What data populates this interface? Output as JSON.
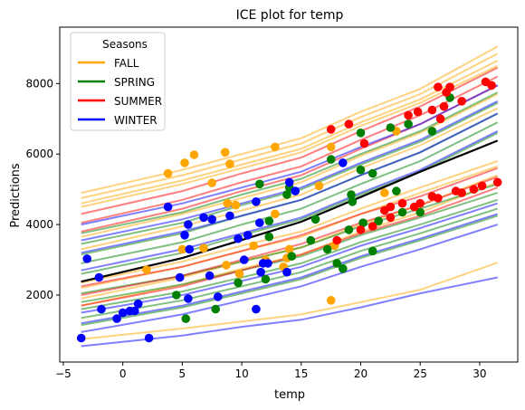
{
  "chart_data": {
    "type": "line",
    "title": "ICE plot for temp",
    "xlabel": "temp",
    "ylabel": "Predictions",
    "xlim": [
      -5.3,
      33.2
    ],
    "ylim": [
      100,
      9600
    ],
    "x_ticks": [
      -5,
      0,
      5,
      10,
      15,
      20,
      25,
      30
    ],
    "y_ticks": [
      2000,
      4000,
      6000,
      8000
    ],
    "grid": false,
    "legend": {
      "title": "Seasons",
      "placement": "top-left",
      "entries": [
        {
          "label": "FALL",
          "color": "#ffa500"
        },
        {
          "label": "SPRING",
          "color": "#008000"
        },
        {
          "label": "SUMMER",
          "color": "#ff0000"
        },
        {
          "label": "WINTER",
          "color": "#0000ff"
        }
      ]
    },
    "x_grid": [
      -3.5,
      5,
      10,
      15,
      20,
      25,
      31.5
    ],
    "average_curve": {
      "color": "#000000",
      "values": [
        2380,
        3050,
        3560,
        4080,
        4780,
        5500,
        6380
      ]
    },
    "ice_curves": [
      {
        "season": "FALL",
        "values": [
          4900,
          5550,
          6000,
          6450,
          7200,
          7850,
          9050
        ]
      },
      {
        "season": "FALL",
        "values": [
          4750,
          5400,
          5850,
          6300,
          7050,
          7700,
          8850
        ]
      },
      {
        "season": "FALL",
        "values": [
          4600,
          5250,
          5700,
          6150,
          6900,
          7550,
          8650
        ]
      },
      {
        "season": "FALL",
        "values": [
          4500,
          5150,
          5600,
          6050,
          6800,
          7450,
          8500
        ]
      },
      {
        "season": "FALL",
        "values": [
          3650,
          4300,
          4750,
          5200,
          5950,
          6600,
          7700
        ]
      },
      {
        "season": "FALL",
        "values": [
          3300,
          3950,
          4400,
          4850,
          5600,
          6250,
          7300
        ]
      },
      {
        "season": "FALL",
        "values": [
          2350,
          2950,
          3400,
          3800,
          4450,
          5050,
          5800
        ]
      },
      {
        "season": "FALL",
        "values": [
          2200,
          2800,
          3250,
          3650,
          4300,
          4900,
          5650
        ]
      },
      {
        "season": "FALL",
        "values": [
          1900,
          2500,
          2950,
          3350,
          4000,
          4550,
          5400
        ]
      },
      {
        "season": "FALL",
        "values": [
          1700,
          2300,
          2750,
          3150,
          3800,
          4350,
          5200
        ]
      },
      {
        "season": "FALL",
        "values": [
          750,
          1050,
          1250,
          1450,
          1800,
          2150,
          2920
        ]
      },
      {
        "season": "SPRING",
        "values": [
          3750,
          4350,
          4850,
          5300,
          6000,
          6650,
          7750
        ]
      },
      {
        "season": "SPRING",
        "values": [
          3450,
          4050,
          4550,
          5000,
          5700,
          6350,
          7450
        ]
      },
      {
        "season": "SPRING",
        "values": [
          3150,
          3750,
          4250,
          4700,
          5400,
          6050,
          7150
        ]
      },
      {
        "season": "SPRING",
        "values": [
          2900,
          3500,
          4000,
          4450,
          5150,
          5800,
          6900
        ]
      },
      {
        "season": "SPRING",
        "values": [
          2600,
          3200,
          3700,
          4150,
          4850,
          5500,
          6600
        ]
      },
      {
        "season": "SPRING",
        "values": [
          2050,
          2550,
          2950,
          3350,
          3950,
          4450,
          5150
        ]
      },
      {
        "season": "SPRING",
        "values": [
          1800,
          2300,
          2700,
          3100,
          3700,
          4200,
          4900
        ]
      },
      {
        "season": "SPRING",
        "values": [
          1600,
          2100,
          2500,
          2900,
          3500,
          4000,
          4700
        ]
      },
      {
        "season": "SPRING",
        "values": [
          1350,
          1850,
          2250,
          2650,
          3250,
          3750,
          4450
        ]
      },
      {
        "season": "SPRING",
        "values": [
          1150,
          1650,
          2050,
          2450,
          3050,
          3550,
          4250
        ]
      },
      {
        "season": "SUMMER",
        "values": [
          4300,
          4950,
          5450,
          5900,
          6650,
          7350,
          8450
        ]
      },
      {
        "season": "SUMMER",
        "values": [
          4050,
          4700,
          5200,
          5650,
          6400,
          7100,
          8200
        ]
      },
      {
        "season": "SUMMER",
        "values": [
          3800,
          4450,
          4950,
          5400,
          6150,
          6850,
          7950
        ]
      },
      {
        "season": "SUMMER",
        "values": [
          2250,
          2800,
          3250,
          3700,
          4300,
          4800,
          5600
        ]
      },
      {
        "season": "SUMMER",
        "values": [
          2000,
          2550,
          3000,
          3450,
          4050,
          4550,
          5350
        ]
      },
      {
        "season": "SUMMER",
        "values": [
          1700,
          2250,
          2700,
          3150,
          3750,
          4250,
          5050
        ]
      },
      {
        "season": "WINTER",
        "values": [
          4000,
          4600,
          5050,
          5500,
          6200,
          6850,
          7950
        ]
      },
      {
        "season": "WINTER",
        "values": [
          3550,
          4150,
          4600,
          5050,
          5750,
          6400,
          7500
        ]
      },
      {
        "season": "WINTER",
        "values": [
          3200,
          3800,
          4250,
          4700,
          5400,
          6050,
          7150
        ]
      },
      {
        "season": "WINTER",
        "values": [
          2700,
          3300,
          3750,
          4200,
          4900,
          5550,
          6650
        ]
      },
      {
        "season": "WINTER",
        "values": [
          1500,
          2000,
          2400,
          2800,
          3400,
          3900,
          4600
        ]
      },
      {
        "season": "WINTER",
        "values": [
          1200,
          1700,
          2100,
          2500,
          3100,
          3600,
          4300
        ]
      },
      {
        "season": "WINTER",
        "values": [
          950,
          1450,
          1850,
          2250,
          2800,
          3300,
          4000
        ]
      },
      {
        "season": "WINTER",
        "values": [
          550,
          850,
          1100,
          1300,
          1650,
          2050,
          2500
        ]
      }
    ],
    "points": [
      {
        "season": "FALL",
        "x": 3.8,
        "y": 5450
      },
      {
        "season": "FALL",
        "x": 5.2,
        "y": 5750
      },
      {
        "season": "FALL",
        "x": 6.0,
        "y": 5980
      },
      {
        "season": "FALL",
        "x": 7.5,
        "y": 5180
      },
      {
        "season": "FALL",
        "x": 8.6,
        "y": 6050
      },
      {
        "season": "FALL",
        "x": 9.0,
        "y": 5720
      },
      {
        "season": "FALL",
        "x": 12.8,
        "y": 6200
      },
      {
        "season": "FALL",
        "x": 17.5,
        "y": 6200
      },
      {
        "season": "FALL",
        "x": 8.8,
        "y": 4600
      },
      {
        "season": "FALL",
        "x": 9.5,
        "y": 4550
      },
      {
        "season": "FALL",
        "x": 12.8,
        "y": 4300
      },
      {
        "season": "FALL",
        "x": 14.0,
        "y": 3300
      },
      {
        "season": "FALL",
        "x": 16.5,
        "y": 5100
      },
      {
        "season": "FALL",
        "x": 23.0,
        "y": 6650
      },
      {
        "season": "FALL",
        "x": 22.0,
        "y": 4900
      },
      {
        "season": "FALL",
        "x": 11.0,
        "y": 3400
      },
      {
        "season": "FALL",
        "x": 2.0,
        "y": 2720
      },
      {
        "season": "FALL",
        "x": 5.0,
        "y": 3300
      },
      {
        "season": "FALL",
        "x": 6.8,
        "y": 3330
      },
      {
        "season": "FALL",
        "x": 8.7,
        "y": 2850
      },
      {
        "season": "FALL",
        "x": 9.8,
        "y": 2600
      },
      {
        "season": "FALL",
        "x": 12.0,
        "y": 3000
      },
      {
        "season": "FALL",
        "x": 13.5,
        "y": 2800
      },
      {
        "season": "FALL",
        "x": 13.8,
        "y": 3050
      },
      {
        "season": "FALL",
        "x": 17.5,
        "y": 1850
      },
      {
        "season": "FALL",
        "x": 17.8,
        "y": 3400
      },
      {
        "season": "SPRING",
        "x": 4.5,
        "y": 2000
      },
      {
        "season": "SPRING",
        "x": 5.3,
        "y": 1330
      },
      {
        "season": "SPRING",
        "x": 7.8,
        "y": 1600
      },
      {
        "season": "SPRING",
        "x": 9.7,
        "y": 2350
      },
      {
        "season": "SPRING",
        "x": 12.0,
        "y": 2450
      },
      {
        "season": "SPRING",
        "x": 12.3,
        "y": 3650
      },
      {
        "season": "SPRING",
        "x": 14.2,
        "y": 3100
      },
      {
        "season": "SPRING",
        "x": 15.8,
        "y": 3550
      },
      {
        "season": "SPRING",
        "x": 16.2,
        "y": 4150
      },
      {
        "season": "SPRING",
        "x": 17.2,
        "y": 3300
      },
      {
        "season": "SPRING",
        "x": 18.5,
        "y": 2750
      },
      {
        "season": "SPRING",
        "x": 19.0,
        "y": 3850
      },
      {
        "season": "SPRING",
        "x": 19.3,
        "y": 4650
      },
      {
        "season": "SPRING",
        "x": 20.2,
        "y": 4050
      },
      {
        "season": "SPRING",
        "x": 21.0,
        "y": 3250
      },
      {
        "season": "SPRING",
        "x": 21.5,
        "y": 4100
      },
      {
        "season": "SPRING",
        "x": 23.0,
        "y": 4950
      },
      {
        "season": "SPRING",
        "x": 23.5,
        "y": 4350
      },
      {
        "season": "SPRING",
        "x": 25.0,
        "y": 4350
      },
      {
        "season": "SPRING",
        "x": 14.0,
        "y": 5050
      },
      {
        "season": "SPRING",
        "x": 13.8,
        "y": 4850
      },
      {
        "season": "SPRING",
        "x": 17.5,
        "y": 5850
      },
      {
        "season": "SPRING",
        "x": 19.2,
        "y": 4850
      },
      {
        "season": "SPRING",
        "x": 20.0,
        "y": 5550
      },
      {
        "season": "SPRING",
        "x": 21.0,
        "y": 5450
      },
      {
        "season": "SPRING",
        "x": 20.0,
        "y": 6600
      },
      {
        "season": "SPRING",
        "x": 22.5,
        "y": 6750
      },
      {
        "season": "SPRING",
        "x": 24.0,
        "y": 6850
      },
      {
        "season": "SPRING",
        "x": 26.0,
        "y": 6650
      },
      {
        "season": "SPRING",
        "x": 27.5,
        "y": 7600
      },
      {
        "season": "SPRING",
        "x": 11.5,
        "y": 5150
      },
      {
        "season": "SPRING",
        "x": 12.3,
        "y": 4100
      },
      {
        "season": "SPRING",
        "x": 18.0,
        "y": 2900
      },
      {
        "season": "SUMMER",
        "x": 17.5,
        "y": 6700
      },
      {
        "season": "SUMMER",
        "x": 19.0,
        "y": 6850
      },
      {
        "season": "SUMMER",
        "x": 20.3,
        "y": 6300
      },
      {
        "season": "SUMMER",
        "x": 24.0,
        "y": 7100
      },
      {
        "season": "SUMMER",
        "x": 24.8,
        "y": 7200
      },
      {
        "season": "SUMMER",
        "x": 26.0,
        "y": 7250
      },
      {
        "season": "SUMMER",
        "x": 27.0,
        "y": 7350
      },
      {
        "season": "SUMMER",
        "x": 27.2,
        "y": 7750
      },
      {
        "season": "SUMMER",
        "x": 27.5,
        "y": 7900
      },
      {
        "season": "SUMMER",
        "x": 28.5,
        "y": 7500
      },
      {
        "season": "SUMMER",
        "x": 30.5,
        "y": 8050
      },
      {
        "season": "SUMMER",
        "x": 31.0,
        "y": 7950
      },
      {
        "season": "SUMMER",
        "x": 26.5,
        "y": 7900
      },
      {
        "season": "SUMMER",
        "x": 26.7,
        "y": 7000
      },
      {
        "season": "SUMMER",
        "x": 20.0,
        "y": 3850
      },
      {
        "season": "SUMMER",
        "x": 21.0,
        "y": 3950
      },
      {
        "season": "SUMMER",
        "x": 22.0,
        "y": 4400
      },
      {
        "season": "SUMMER",
        "x": 22.5,
        "y": 4500
      },
      {
        "season": "SUMMER",
        "x": 23.5,
        "y": 4600
      },
      {
        "season": "SUMMER",
        "x": 24.5,
        "y": 4500
      },
      {
        "season": "SUMMER",
        "x": 25.0,
        "y": 4600
      },
      {
        "season": "SUMMER",
        "x": 26.0,
        "y": 4800
      },
      {
        "season": "SUMMER",
        "x": 26.5,
        "y": 4750
      },
      {
        "season": "SUMMER",
        "x": 28.0,
        "y": 4950
      },
      {
        "season": "SUMMER",
        "x": 28.5,
        "y": 4900
      },
      {
        "season": "SUMMER",
        "x": 29.5,
        "y": 5000
      },
      {
        "season": "SUMMER",
        "x": 30.2,
        "y": 5100
      },
      {
        "season": "SUMMER",
        "x": 31.5,
        "y": 5200
      },
      {
        "season": "SUMMER",
        "x": 22.5,
        "y": 4200
      },
      {
        "season": "SUMMER",
        "x": 18.0,
        "y": 3550
      },
      {
        "season": "WINTER",
        "x": -3.5,
        "y": 780
      },
      {
        "season": "WINTER",
        "x": -3.0,
        "y": 3030
      },
      {
        "season": "WINTER",
        "x": -2.0,
        "y": 2500
      },
      {
        "season": "WINTER",
        "x": -1.8,
        "y": 1600
      },
      {
        "season": "WINTER",
        "x": -0.5,
        "y": 1330
      },
      {
        "season": "WINTER",
        "x": 0.0,
        "y": 1500
      },
      {
        "season": "WINTER",
        "x": 0.6,
        "y": 1550
      },
      {
        "season": "WINTER",
        "x": 1.0,
        "y": 1550
      },
      {
        "season": "WINTER",
        "x": 1.3,
        "y": 1750
      },
      {
        "season": "WINTER",
        "x": 2.2,
        "y": 780
      },
      {
        "season": "WINTER",
        "x": 3.8,
        "y": 4500
      },
      {
        "season": "WINTER",
        "x": 4.8,
        "y": 2500
      },
      {
        "season": "WINTER",
        "x": 5.2,
        "y": 3700
      },
      {
        "season": "WINTER",
        "x": 5.5,
        "y": 4000
      },
      {
        "season": "WINTER",
        "x": 5.6,
        "y": 3300
      },
      {
        "season": "WINTER",
        "x": 5.5,
        "y": 1900
      },
      {
        "season": "WINTER",
        "x": 6.8,
        "y": 4200
      },
      {
        "season": "WINTER",
        "x": 7.5,
        "y": 4150
      },
      {
        "season": "WINTER",
        "x": 7.3,
        "y": 2550
      },
      {
        "season": "WINTER",
        "x": 8.0,
        "y": 1950
      },
      {
        "season": "WINTER",
        "x": 9.0,
        "y": 4250
      },
      {
        "season": "WINTER",
        "x": 9.7,
        "y": 3600
      },
      {
        "season": "WINTER",
        "x": 10.2,
        "y": 3000
      },
      {
        "season": "WINTER",
        "x": 10.5,
        "y": 3700
      },
      {
        "season": "WINTER",
        "x": 11.2,
        "y": 4650
      },
      {
        "season": "WINTER",
        "x": 11.5,
        "y": 4050
      },
      {
        "season": "WINTER",
        "x": 11.8,
        "y": 2900
      },
      {
        "season": "WINTER",
        "x": 11.6,
        "y": 2650
      },
      {
        "season": "WINTER",
        "x": 12.2,
        "y": 2900
      },
      {
        "season": "WINTER",
        "x": 11.2,
        "y": 1600
      },
      {
        "season": "WINTER",
        "x": 14.0,
        "y": 5200
      },
      {
        "season": "WINTER",
        "x": 13.8,
        "y": 2650
      },
      {
        "season": "WINTER",
        "x": 14.5,
        "y": 4950
      },
      {
        "season": "WINTER",
        "x": 18.5,
        "y": 5750
      }
    ]
  }
}
